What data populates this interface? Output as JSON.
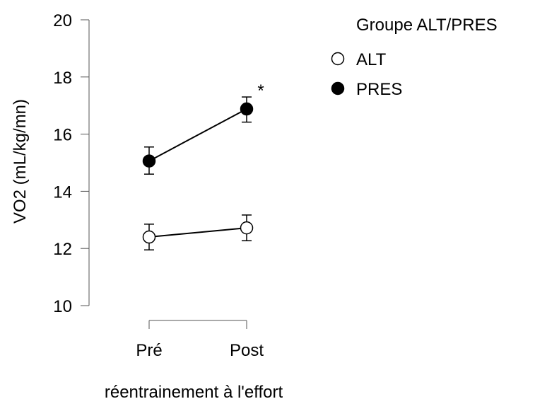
{
  "chart_data": {
    "type": "line",
    "title": "",
    "xlabel": "réentrainement à l'effort",
    "ylabel": "VO2 (mL/kg/mn)",
    "categories": [
      "Pré",
      "Post"
    ],
    "ylim": [
      10,
      20
    ],
    "yticks": [
      10,
      12,
      14,
      16,
      18,
      20
    ],
    "legend": {
      "title": "Groupe ALT/PRES",
      "position": "top-right"
    },
    "series": [
      {
        "name": "ALT",
        "marker": "open-circle",
        "values": [
          12.4,
          12.72
        ],
        "err_low": [
          11.95,
          12.27
        ],
        "err_high": [
          12.85,
          13.17
        ]
      },
      {
        "name": "PRES",
        "marker": "filled-circle",
        "values": [
          15.06,
          16.88
        ],
        "err_low": [
          14.6,
          16.42
        ],
        "err_high": [
          15.55,
          17.3
        ]
      }
    ],
    "annotations": [
      {
        "text": "*",
        "series": "PRES",
        "category": "Post"
      }
    ],
    "grid": false
  }
}
